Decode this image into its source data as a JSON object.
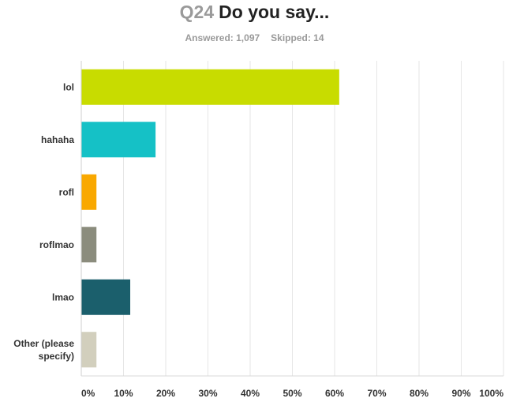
{
  "header": {
    "question_number": "Q24",
    "question_text": "Do you say...",
    "answered": "Answered: 1,097",
    "skipped": "Skipped: 14"
  },
  "chart_data": {
    "type": "bar",
    "orientation": "horizontal",
    "categories": [
      "lol",
      "hahaha",
      "rofl",
      "roflmao",
      "lmao",
      "Other (please specify)"
    ],
    "category_lines": [
      [
        "lol"
      ],
      [
        "hahaha"
      ],
      [
        "rofl"
      ],
      [
        "roflmao"
      ],
      [
        "lmao"
      ],
      [
        "Other (please",
        "specify)"
      ]
    ],
    "values": [
      61,
      17.5,
      3.5,
      3.5,
      11.5,
      3.5
    ],
    "colors": [
      "#c8dc00",
      "#15c1c6",
      "#f9a800",
      "#8b8c7d",
      "#1b5f6c",
      "#d2cfbd"
    ],
    "xlim": [
      0,
      100
    ],
    "xticks": [
      "0%",
      "10%",
      "20%",
      "30%",
      "40%",
      "50%",
      "60%",
      "70%",
      "80%",
      "90%",
      "100%"
    ],
    "grid": true
  }
}
